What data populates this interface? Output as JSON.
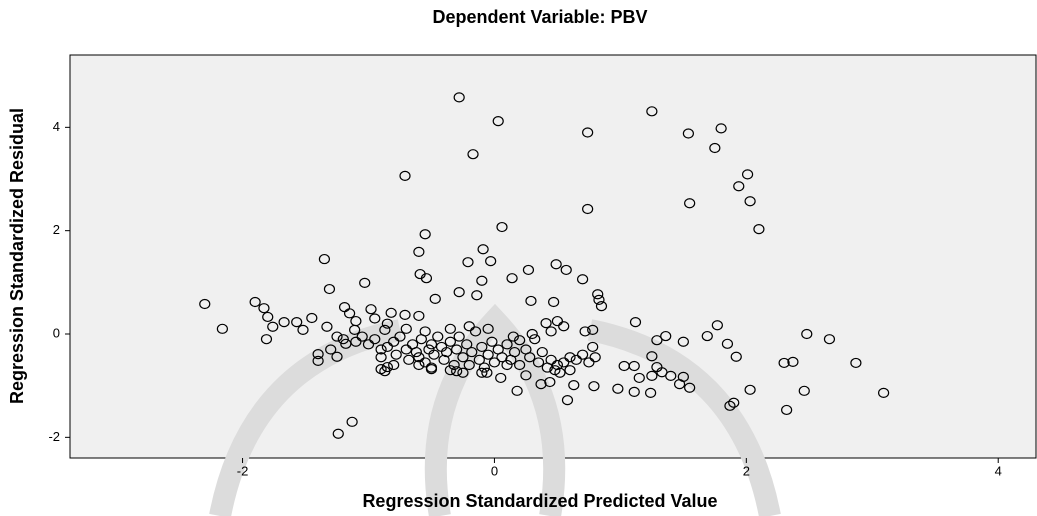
{
  "chart_data": {
    "type": "scatter",
    "title": "Dependent Variable: PBV",
    "xlabel": "Regression Standardized Predicted Value",
    "ylabel": "Regression Standardized Residual",
    "xlim": [
      -3.37,
      4.3
    ],
    "ylim": [
      -2.4,
      5.4
    ],
    "xticks": [
      -2,
      0,
      2,
      4
    ],
    "yticks": [
      -2,
      0,
      2,
      4
    ],
    "color": "#000000",
    "x": [
      -0.28,
      0.03,
      1.25,
      0.74,
      1.54,
      1.8,
      1.75,
      -0.17,
      -0.71,
      2.01,
      1.94,
      2.03,
      1.55,
      0.74,
      2.1,
      0.06,
      -0.55,
      -0.6,
      -0.09,
      -1.35,
      -0.21,
      -0.03,
      0.27,
      0.49,
      0.57,
      -0.59,
      -0.54,
      0.14,
      -0.1,
      0.7,
      -1.03,
      -1.31,
      -0.28,
      -0.14,
      0.82,
      0.83,
      -0.47,
      0.29,
      0.47,
      0.85,
      -2.3,
      -1.9,
      -1.83,
      -1.19,
      -0.98,
      -0.82,
      -0.71,
      -0.6,
      -1.8,
      -1.67,
      -1.57,
      -1.45,
      0.41,
      1.12,
      1.77,
      -2.16,
      -1.76,
      -1.52,
      -1.33,
      -1.11,
      -0.87,
      0.78,
      2.48,
      2.66,
      1.36,
      1.29,
      1.69,
      -1.81,
      -1.18,
      0.2,
      1.5,
      1.85,
      -1.4,
      -1.25,
      -1.4,
      1.92,
      2.3,
      2.37,
      2.87,
      1.03,
      1.11,
      1.29,
      1.25,
      1.25,
      1.47,
      1.55,
      0.98,
      1.11,
      1.24,
      2.03,
      2.46,
      3.09,
      1.9,
      1.87,
      2.32,
      0.58,
      0.18,
      0.37,
      0.44,
      0.79,
      0.63,
      -1.13,
      -1.24,
      -0.9,
      -0.87,
      -0.85,
      -0.5,
      -0.3,
      -0.06,
      1.4,
      1.33,
      1.15,
      1.5,
      -1.2,
      -1.1,
      -1.05,
      -1.0,
      -0.95,
      -0.9,
      -0.85,
      -0.8,
      -0.78,
      -0.75,
      -0.7,
      -0.68,
      -0.65,
      -0.62,
      -0.6,
      -0.58,
      -0.55,
      -0.52,
      -0.5,
      -0.48,
      -0.45,
      -0.42,
      -0.4,
      -0.38,
      -0.35,
      -0.32,
      -0.3,
      -0.28,
      -0.25,
      -0.22,
      -0.2,
      -0.18,
      -0.15,
      -0.12,
      -0.1,
      -0.08,
      -0.05,
      -0.02,
      0.0,
      0.03,
      0.06,
      0.1,
      0.13,
      0.16,
      0.2,
      0.25,
      0.28,
      0.32,
      0.35,
      0.38,
      0.42,
      0.45,
      0.48,
      0.5,
      0.52,
      0.55,
      0.6,
      0.65,
      0.7,
      0.75,
      0.8,
      0.78,
      0.72,
      0.55,
      0.5,
      0.45,
      0.3,
      0.15,
      -0.05,
      -0.2,
      -0.35,
      -0.55,
      -0.7,
      -0.85,
      -0.95,
      -1.1,
      -1.15,
      -0.9,
      -0.6,
      -0.35,
      -0.1,
      0.1,
      0.6,
      -1.3,
      -1.25,
      -0.8,
      -0.5,
      -0.25,
      0.05,
      0.25
    ],
    "values": [
      4.58,
      4.12,
      4.31,
      3.9,
      3.88,
      3.98,
      3.6,
      3.48,
      3.06,
      3.09,
      2.86,
      2.57,
      2.53,
      2.42,
      2.03,
      2.07,
      1.93,
      1.59,
      1.64,
      1.45,
      1.39,
      1.41,
      1.24,
      1.35,
      1.24,
      1.16,
      1.08,
      1.08,
      1.03,
      1.06,
      0.99,
      0.87,
      0.81,
      0.75,
      0.77,
      0.66,
      0.68,
      0.64,
      0.62,
      0.54,
      0.58,
      0.62,
      0.5,
      0.52,
      0.48,
      0.41,
      0.37,
      0.35,
      0.33,
      0.23,
      0.23,
      0.31,
      0.21,
      0.23,
      0.17,
      0.1,
      0.14,
      0.08,
      0.14,
      0.08,
      0.08,
      0.08,
      0.0,
      -0.1,
      -0.04,
      -0.12,
      -0.04,
      -0.1,
      -0.19,
      -0.12,
      -0.15,
      -0.19,
      -0.39,
      -0.44,
      -0.52,
      -0.44,
      -0.56,
      -0.54,
      -0.56,
      -0.62,
      -0.62,
      -0.64,
      -0.43,
      -0.81,
      -0.97,
      -1.04,
      -1.06,
      -1.12,
      -1.14,
      -1.08,
      -1.1,
      -1.14,
      -1.33,
      -1.39,
      -1.47,
      -1.28,
      -1.1,
      -0.97,
      -0.93,
      -1.01,
      -0.99,
      -1.7,
      -1.93,
      -0.68,
      -0.72,
      -0.64,
      -0.68,
      -0.72,
      -0.75,
      -0.81,
      -0.74,
      -0.85,
      -0.83,
      -0.1,
      -0.15,
      -0.05,
      -0.2,
      -0.1,
      -0.3,
      -0.25,
      -0.15,
      -0.4,
      -0.05,
      -0.3,
      -0.5,
      -0.2,
      -0.35,
      -0.45,
      -0.1,
      -0.55,
      -0.3,
      -0.2,
      -0.4,
      -0.05,
      -0.25,
      -0.5,
      -0.35,
      -0.15,
      -0.6,
      -0.3,
      -0.05,
      -0.45,
      -0.2,
      -0.6,
      -0.35,
      0.05,
      -0.5,
      -0.25,
      -0.65,
      -0.4,
      -0.15,
      -0.55,
      -0.3,
      -0.45,
      -0.2,
      -0.5,
      -0.35,
      -0.6,
      -0.3,
      -0.45,
      -0.1,
      -0.55,
      -0.35,
      -0.65,
      -0.5,
      -0.7,
      -0.6,
      -0.75,
      -0.55,
      -0.45,
      -0.5,
      -0.4,
      -0.55,
      -0.45,
      -0.25,
      0.05,
      0.15,
      0.25,
      0.05,
      0.0,
      -0.05,
      0.1,
      0.15,
      0.1,
      0.05,
      0.1,
      0.2,
      0.3,
      0.25,
      0.4,
      -0.45,
      -0.6,
      -0.7,
      -0.75,
      -0.6,
      -0.7,
      -0.3,
      -0.05,
      -0.6,
      -0.65,
      -0.75,
      -0.85,
      -0.8
    ]
  }
}
